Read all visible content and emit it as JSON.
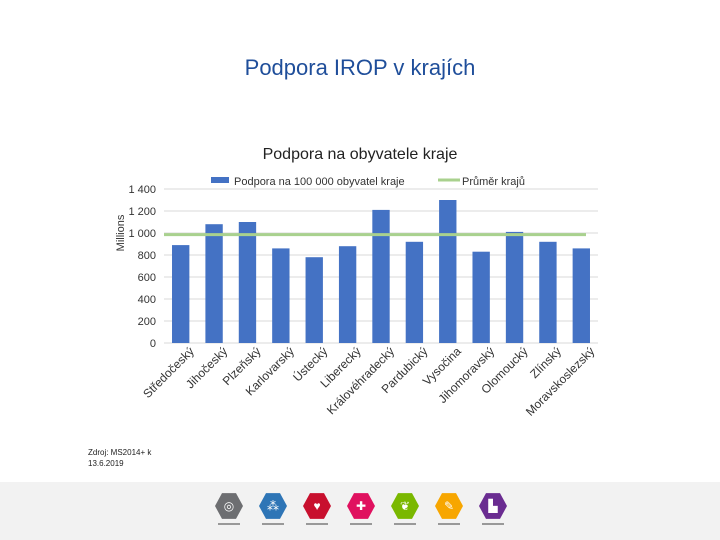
{
  "page": {
    "title": "Podpora IROP v krajích"
  },
  "chart_data": {
    "type": "bar",
    "title": "Podpora na obyvatele kraje",
    "ylabel": "Millions",
    "ylim": [
      0,
      1400
    ],
    "yticks": [
      0,
      200,
      400,
      600,
      800,
      1000,
      1200,
      1400
    ],
    "ytick_labels": [
      "0",
      "200",
      "400",
      "600",
      "800",
      "1 000",
      "1 200",
      "1 400"
    ],
    "categories": [
      "Středočeský",
      "Jihočeský",
      "Plzeňský",
      "Karlovarský",
      "Ústecký",
      "Liberecký",
      "Královéhradecký",
      "Pardubický",
      "Vysočina",
      "Jihomoravský",
      "Olomoucký",
      "Zlínský",
      "Moravskoslezský"
    ],
    "series": [
      {
        "name": "Podpora na 100 000 obyvatel kraje",
        "kind": "bar",
        "color": "#4472c4",
        "values": [
          890,
          1080,
          1100,
          860,
          780,
          880,
          1210,
          920,
          1300,
          830,
          1010,
          920,
          860
        ]
      },
      {
        "name": "Průměr krajů",
        "kind": "line",
        "color": "#a9d18e",
        "values": [
          985,
          985,
          985,
          985,
          985,
          985,
          985,
          985,
          985,
          985,
          985,
          985,
          985
        ]
      }
    ],
    "grid": true,
    "legend": "top"
  },
  "source": {
    "text": "Zdroj: MS2014+ k 13.6.2019"
  },
  "footer": {
    "icons": [
      {
        "name": "target-icon",
        "glyph": "◎",
        "color": "#6d6e71"
      },
      {
        "name": "network-icon",
        "glyph": "⁂",
        "color": "#2e75b6"
      },
      {
        "name": "heart-icon",
        "glyph": "♥",
        "color": "#c8102e"
      },
      {
        "name": "cross-icon",
        "glyph": "✚",
        "color": "#e0115f"
      },
      {
        "name": "leaf-icon",
        "glyph": "❦",
        "color": "#7ab800"
      },
      {
        "name": "pencil-icon",
        "glyph": "✎",
        "color": "#f7a600"
      },
      {
        "name": "corner-icon",
        "glyph": "▙",
        "color": "#6a2c91"
      }
    ]
  }
}
